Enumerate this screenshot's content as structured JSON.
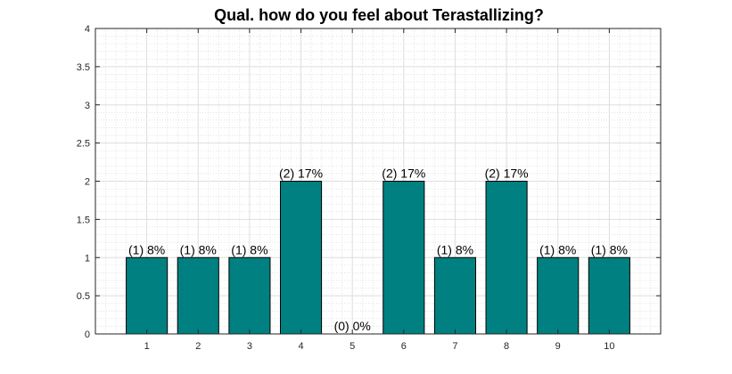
{
  "chart_data": {
    "type": "bar",
    "title": "Qual. how do you feel about Terastallizing?",
    "xlabel": "",
    "ylabel": "",
    "categories": [
      "1",
      "2",
      "3",
      "4",
      "5",
      "6",
      "7",
      "8",
      "9",
      "10"
    ],
    "values": [
      1,
      1,
      1,
      2,
      0,
      2,
      1,
      2,
      1,
      1
    ],
    "data_labels": [
      "(1) 8%",
      "(1) 8%",
      "(1) 8%",
      "(2) 17%",
      "(0) 0%",
      "(2) 17%",
      "(1) 8%",
      "(2) 17%",
      "(1) 8%",
      "(1) 8%"
    ],
    "ylim": [
      0,
      4
    ],
    "xlim": [
      0,
      11
    ],
    "yticks": [
      0,
      0.5,
      1,
      1.5,
      2,
      2.5,
      3,
      3.5,
      4
    ],
    "ytick_labels": [
      "0",
      "0.5",
      "1",
      "1.5",
      "2",
      "2.5",
      "3",
      "3.5",
      "4"
    ],
    "grid": true,
    "minor_grid": true,
    "legend": "none",
    "bar_color": "#008080",
    "bar_edge_color": "#000000"
  }
}
